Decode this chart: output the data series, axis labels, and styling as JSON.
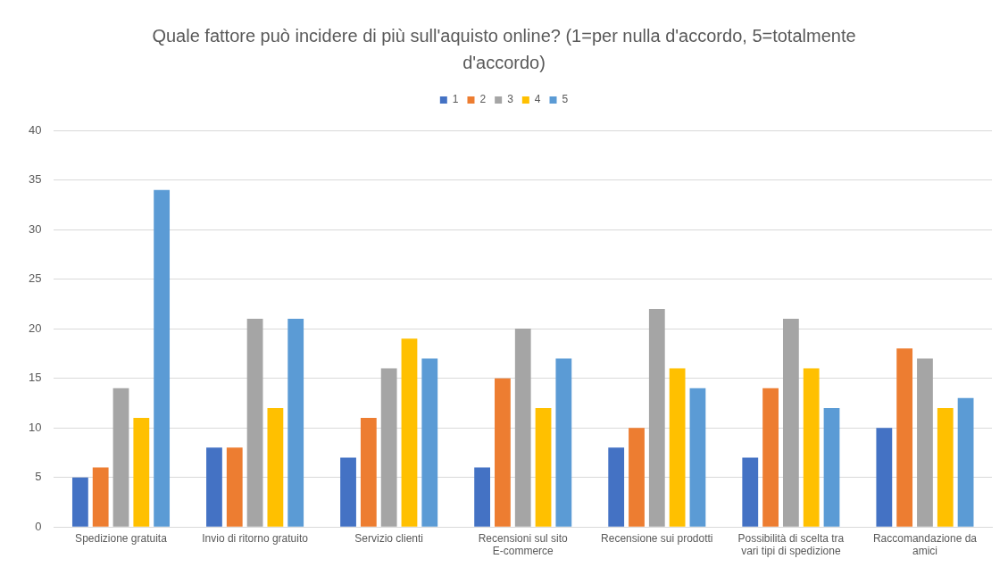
{
  "chart_data": {
    "type": "bar",
    "title": "Quale fattore può incidere di più sull'aquisto online? (1=per nulla d'accordo, 5=totalmente d'accordo)",
    "categories": [
      "Spedizione gratuita",
      "Invio di ritorno gratuito",
      "Servizio clienti",
      "Recensioni sul sito E-commerce",
      "Recensione sui prodotti",
      "Possibilità di scelta tra vari tipi di spedizione",
      "Raccomandazione da amici"
    ],
    "series": [
      {
        "name": "1",
        "color": "#4472c4",
        "values": [
          5,
          8,
          7,
          6,
          8,
          7,
          10
        ]
      },
      {
        "name": "2",
        "color": "#ed7d31",
        "values": [
          6,
          8,
          11,
          15,
          10,
          14,
          18
        ]
      },
      {
        "name": "3",
        "color": "#a5a5a5",
        "values": [
          14,
          21,
          16,
          20,
          22,
          21,
          17
        ]
      },
      {
        "name": "4",
        "color": "#ffc000",
        "values": [
          11,
          12,
          19,
          12,
          16,
          16,
          12
        ]
      },
      {
        "name": "5",
        "color": "#5b9bd5",
        "values": [
          34,
          21,
          17,
          17,
          14,
          12,
          13
        ]
      }
    ],
    "ylim": [
      0,
      40
    ],
    "yticks": [
      0,
      5,
      10,
      15,
      20,
      25,
      30,
      35,
      40
    ],
    "grid": "y",
    "legend": "top"
  }
}
